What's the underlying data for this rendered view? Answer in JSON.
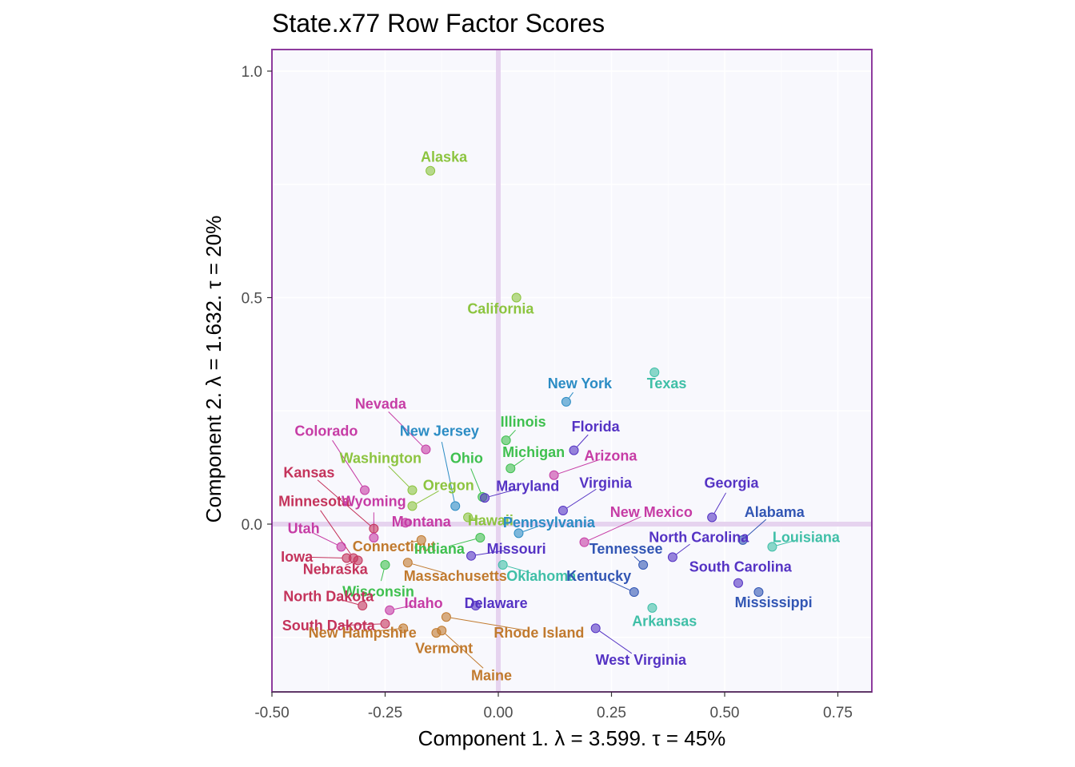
{
  "chart_data": {
    "type": "scatter",
    "title": "State.x77 Row Factor Scores",
    "xlabel": "Component 1.   λ = 3.599.  τ = 45%",
    "ylabel": "Component 2.   λ = 1.632.  τ = 20%",
    "xlim": [
      -0.5,
      0.82
    ],
    "ylim": [
      -0.37,
      1.05
    ],
    "x_ticks": [
      -0.5,
      -0.25,
      0.0,
      0.25,
      0.5,
      0.75
    ],
    "x_tick_labels": [
      "-0.50",
      "-0.25",
      "0.00",
      "0.25",
      "0.50",
      "0.75"
    ],
    "y_ticks": [
      0.0,
      0.5,
      1.0
    ],
    "y_tick_labels": [
      "0.0",
      "0.5",
      "1.0"
    ],
    "grid": true,
    "colors": {
      "panel_bg": "#f8f8fd",
      "panel_border": "#8e3b9e",
      "origin_lines": "#e6d3ef",
      "grid": "#ffffff"
    },
    "points": [
      {
        "name": "Alaska",
        "x": -0.15,
        "y": 0.78,
        "color": "#8cc43f",
        "lx": -0.12,
        "ly": 0.8
      },
      {
        "name": "California",
        "x": 0.04,
        "y": 0.5,
        "color": "#8cc43f",
        "lx": 0.005,
        "ly": 0.465
      },
      {
        "name": "Texas",
        "x": 0.345,
        "y": 0.335,
        "color": "#3fbfa7",
        "lx": 0.372,
        "ly": 0.3
      },
      {
        "name": "New York",
        "x": 0.15,
        "y": 0.27,
        "color": "#2b8cc4",
        "lx": 0.18,
        "ly": 0.3
      },
      {
        "name": "Nevada",
        "x": -0.16,
        "y": 0.165,
        "color": "#c63ca5",
        "lx": -0.26,
        "ly": 0.255
      },
      {
        "name": "Colorado",
        "x": -0.295,
        "y": 0.075,
        "color": "#c63ca5",
        "lx": -0.38,
        "ly": 0.195
      },
      {
        "name": "New Jersey",
        "x": -0.095,
        "y": 0.04,
        "color": "#2b8cc4",
        "lx": -0.13,
        "ly": 0.195
      },
      {
        "name": "Illinois",
        "x": 0.017,
        "y": 0.185,
        "color": "#3fc04f",
        "lx": 0.055,
        "ly": 0.215
      },
      {
        "name": "Florida",
        "x": 0.167,
        "y": 0.163,
        "color": "#5533c4",
        "lx": 0.215,
        "ly": 0.205
      },
      {
        "name": "Washington",
        "x": -0.19,
        "y": 0.075,
        "color": "#8cc43f",
        "lx": -0.26,
        "ly": 0.135
      },
      {
        "name": "Ohio",
        "x": -0.035,
        "y": 0.06,
        "color": "#3fc04f",
        "lx": -0.07,
        "ly": 0.135
      },
      {
        "name": "Michigan",
        "x": 0.027,
        "y": 0.123,
        "color": "#3fc04f",
        "lx": 0.078,
        "ly": 0.148
      },
      {
        "name": "Arizona",
        "x": 0.123,
        "y": 0.108,
        "color": "#c63ca5",
        "lx": 0.248,
        "ly": 0.14
      },
      {
        "name": "Kansas",
        "x": -0.275,
        "y": -0.01,
        "color": "#c4335b",
        "lx": -0.418,
        "ly": 0.103
      },
      {
        "name": "Oregon",
        "x": -0.19,
        "y": 0.04,
        "color": "#8cc43f",
        "lx": -0.11,
        "ly": 0.075
      },
      {
        "name": "Maryland",
        "x": -0.03,
        "y": 0.058,
        "color": "#5533c4",
        "lx": 0.065,
        "ly": 0.073
      },
      {
        "name": "Virginia",
        "x": 0.143,
        "y": 0.03,
        "color": "#5533c4",
        "lx": 0.237,
        "ly": 0.08
      },
      {
        "name": "Georgia",
        "x": 0.472,
        "y": 0.015,
        "color": "#5533c4",
        "lx": 0.515,
        "ly": 0.08
      },
      {
        "name": "Minnesota",
        "x": -0.32,
        "y": -0.075,
        "color": "#c4335b",
        "lx": -0.407,
        "ly": 0.04
      },
      {
        "name": "Wyoming",
        "x": -0.275,
        "y": -0.03,
        "color": "#c63ca5",
        "lx": -0.275,
        "ly": 0.04
      },
      {
        "name": "Hawaii",
        "x": -0.067,
        "y": 0.015,
        "color": "#8cc43f",
        "lx": -0.017,
        "ly": -0.003
      },
      {
        "name": "Alabama",
        "x": 0.54,
        "y": -0.035,
        "color": "#3256b4",
        "lx": 0.61,
        "ly": 0.016
      },
      {
        "name": "New Mexico",
        "x": 0.19,
        "y": -0.04,
        "color": "#c63ca5",
        "lx": 0.338,
        "ly": 0.016
      },
      {
        "name": "Montana",
        "x": -0.205,
        "y": 0.003,
        "color": "#c63ca5",
        "lx": -0.17,
        "ly": -0.005
      },
      {
        "name": "Pennsylvania",
        "x": 0.045,
        "y": -0.02,
        "color": "#2b8cc4",
        "lx": 0.112,
        "ly": -0.007
      },
      {
        "name": "Utah",
        "x": -0.347,
        "y": -0.05,
        "color": "#c63ca5",
        "lx": -0.43,
        "ly": -0.02
      },
      {
        "name": "Iowa",
        "x": -0.335,
        "y": -0.075,
        "color": "#c4335b",
        "lx": -0.445,
        "ly": -0.083
      },
      {
        "name": "Connecticut",
        "x": -0.17,
        "y": -0.035,
        "color": "#c17a2e",
        "lx": -0.23,
        "ly": -0.06
      },
      {
        "name": "Indiana",
        "x": -0.04,
        "y": -0.03,
        "color": "#3fc04f",
        "lx": -0.13,
        "ly": -0.065
      },
      {
        "name": "Missouri",
        "x": -0.06,
        "y": -0.07,
        "color": "#5533c4",
        "lx": 0.04,
        "ly": -0.065
      },
      {
        "name": "North Carolina",
        "x": 0.385,
        "y": -0.073,
        "color": "#5533c4",
        "lx": 0.443,
        "ly": -0.04
      },
      {
        "name": "Louisiana",
        "x": 0.605,
        "y": -0.05,
        "color": "#3fbfa7",
        "lx": 0.68,
        "ly": -0.04
      },
      {
        "name": "Tennessee",
        "x": 0.32,
        "y": -0.09,
        "color": "#3256b4",
        "lx": 0.282,
        "ly": -0.065
      },
      {
        "name": "Nebraska",
        "x": -0.31,
        "y": -0.08,
        "color": "#c4335b",
        "lx": -0.36,
        "ly": -0.11
      },
      {
        "name": "Massachusetts",
        "x": -0.2,
        "y": -0.085,
        "color": "#c17a2e",
        "lx": -0.095,
        "ly": -0.125
      },
      {
        "name": "Oklahoma",
        "x": 0.01,
        "y": -0.09,
        "color": "#3fbfa7",
        "lx": 0.095,
        "ly": -0.125
      },
      {
        "name": "Kentucky",
        "x": 0.3,
        "y": -0.15,
        "color": "#3256b4",
        "lx": 0.222,
        "ly": -0.125
      },
      {
        "name": "South Carolina",
        "x": 0.53,
        "y": -0.13,
        "color": "#5533c4",
        "lx": 0.535,
        "ly": -0.105
      },
      {
        "name": "Wisconsin",
        "x": -0.25,
        "y": -0.09,
        "color": "#3fc04f",
        "lx": -0.265,
        "ly": -0.16
      },
      {
        "name": "North Dakota",
        "x": -0.3,
        "y": -0.18,
        "color": "#c4335b",
        "lx": -0.375,
        "ly": -0.17
      },
      {
        "name": "Idaho",
        "x": -0.24,
        "y": -0.19,
        "color": "#c63ca5",
        "lx": -0.165,
        "ly": -0.185
      },
      {
        "name": "Delaware",
        "x": -0.05,
        "y": -0.18,
        "color": "#5533c4",
        "lx": -0.005,
        "ly": -0.185
      },
      {
        "name": "Mississippi",
        "x": 0.575,
        "y": -0.15,
        "color": "#3256b4",
        "lx": 0.608,
        "ly": -0.183
      },
      {
        "name": "Arkansas",
        "x": 0.34,
        "y": -0.185,
        "color": "#3fbfa7",
        "lx": 0.367,
        "ly": -0.225
      },
      {
        "name": "South Dakota",
        "x": -0.25,
        "y": -0.22,
        "color": "#c4335b",
        "lx": -0.375,
        "ly": -0.235
      },
      {
        "name": "New Hampshire",
        "x": -0.21,
        "y": -0.23,
        "color": "#c17a2e",
        "lx": -0.3,
        "ly": -0.25
      },
      {
        "name": "Rhode Island",
        "x": -0.115,
        "y": -0.205,
        "color": "#c17a2e",
        "lx": 0.09,
        "ly": -0.25
      },
      {
        "name": "Vermont",
        "x": -0.137,
        "y": -0.24,
        "color": "#c17a2e",
        "lx": -0.12,
        "ly": -0.285
      },
      {
        "name": "West Virginia",
        "x": 0.215,
        "y": -0.23,
        "color": "#5533c4",
        "lx": 0.315,
        "ly": -0.31
      },
      {
        "name": "Maine",
        "x": -0.125,
        "y": -0.235,
        "color": "#c17a2e",
        "lx": -0.015,
        "ly": -0.345
      }
    ]
  }
}
